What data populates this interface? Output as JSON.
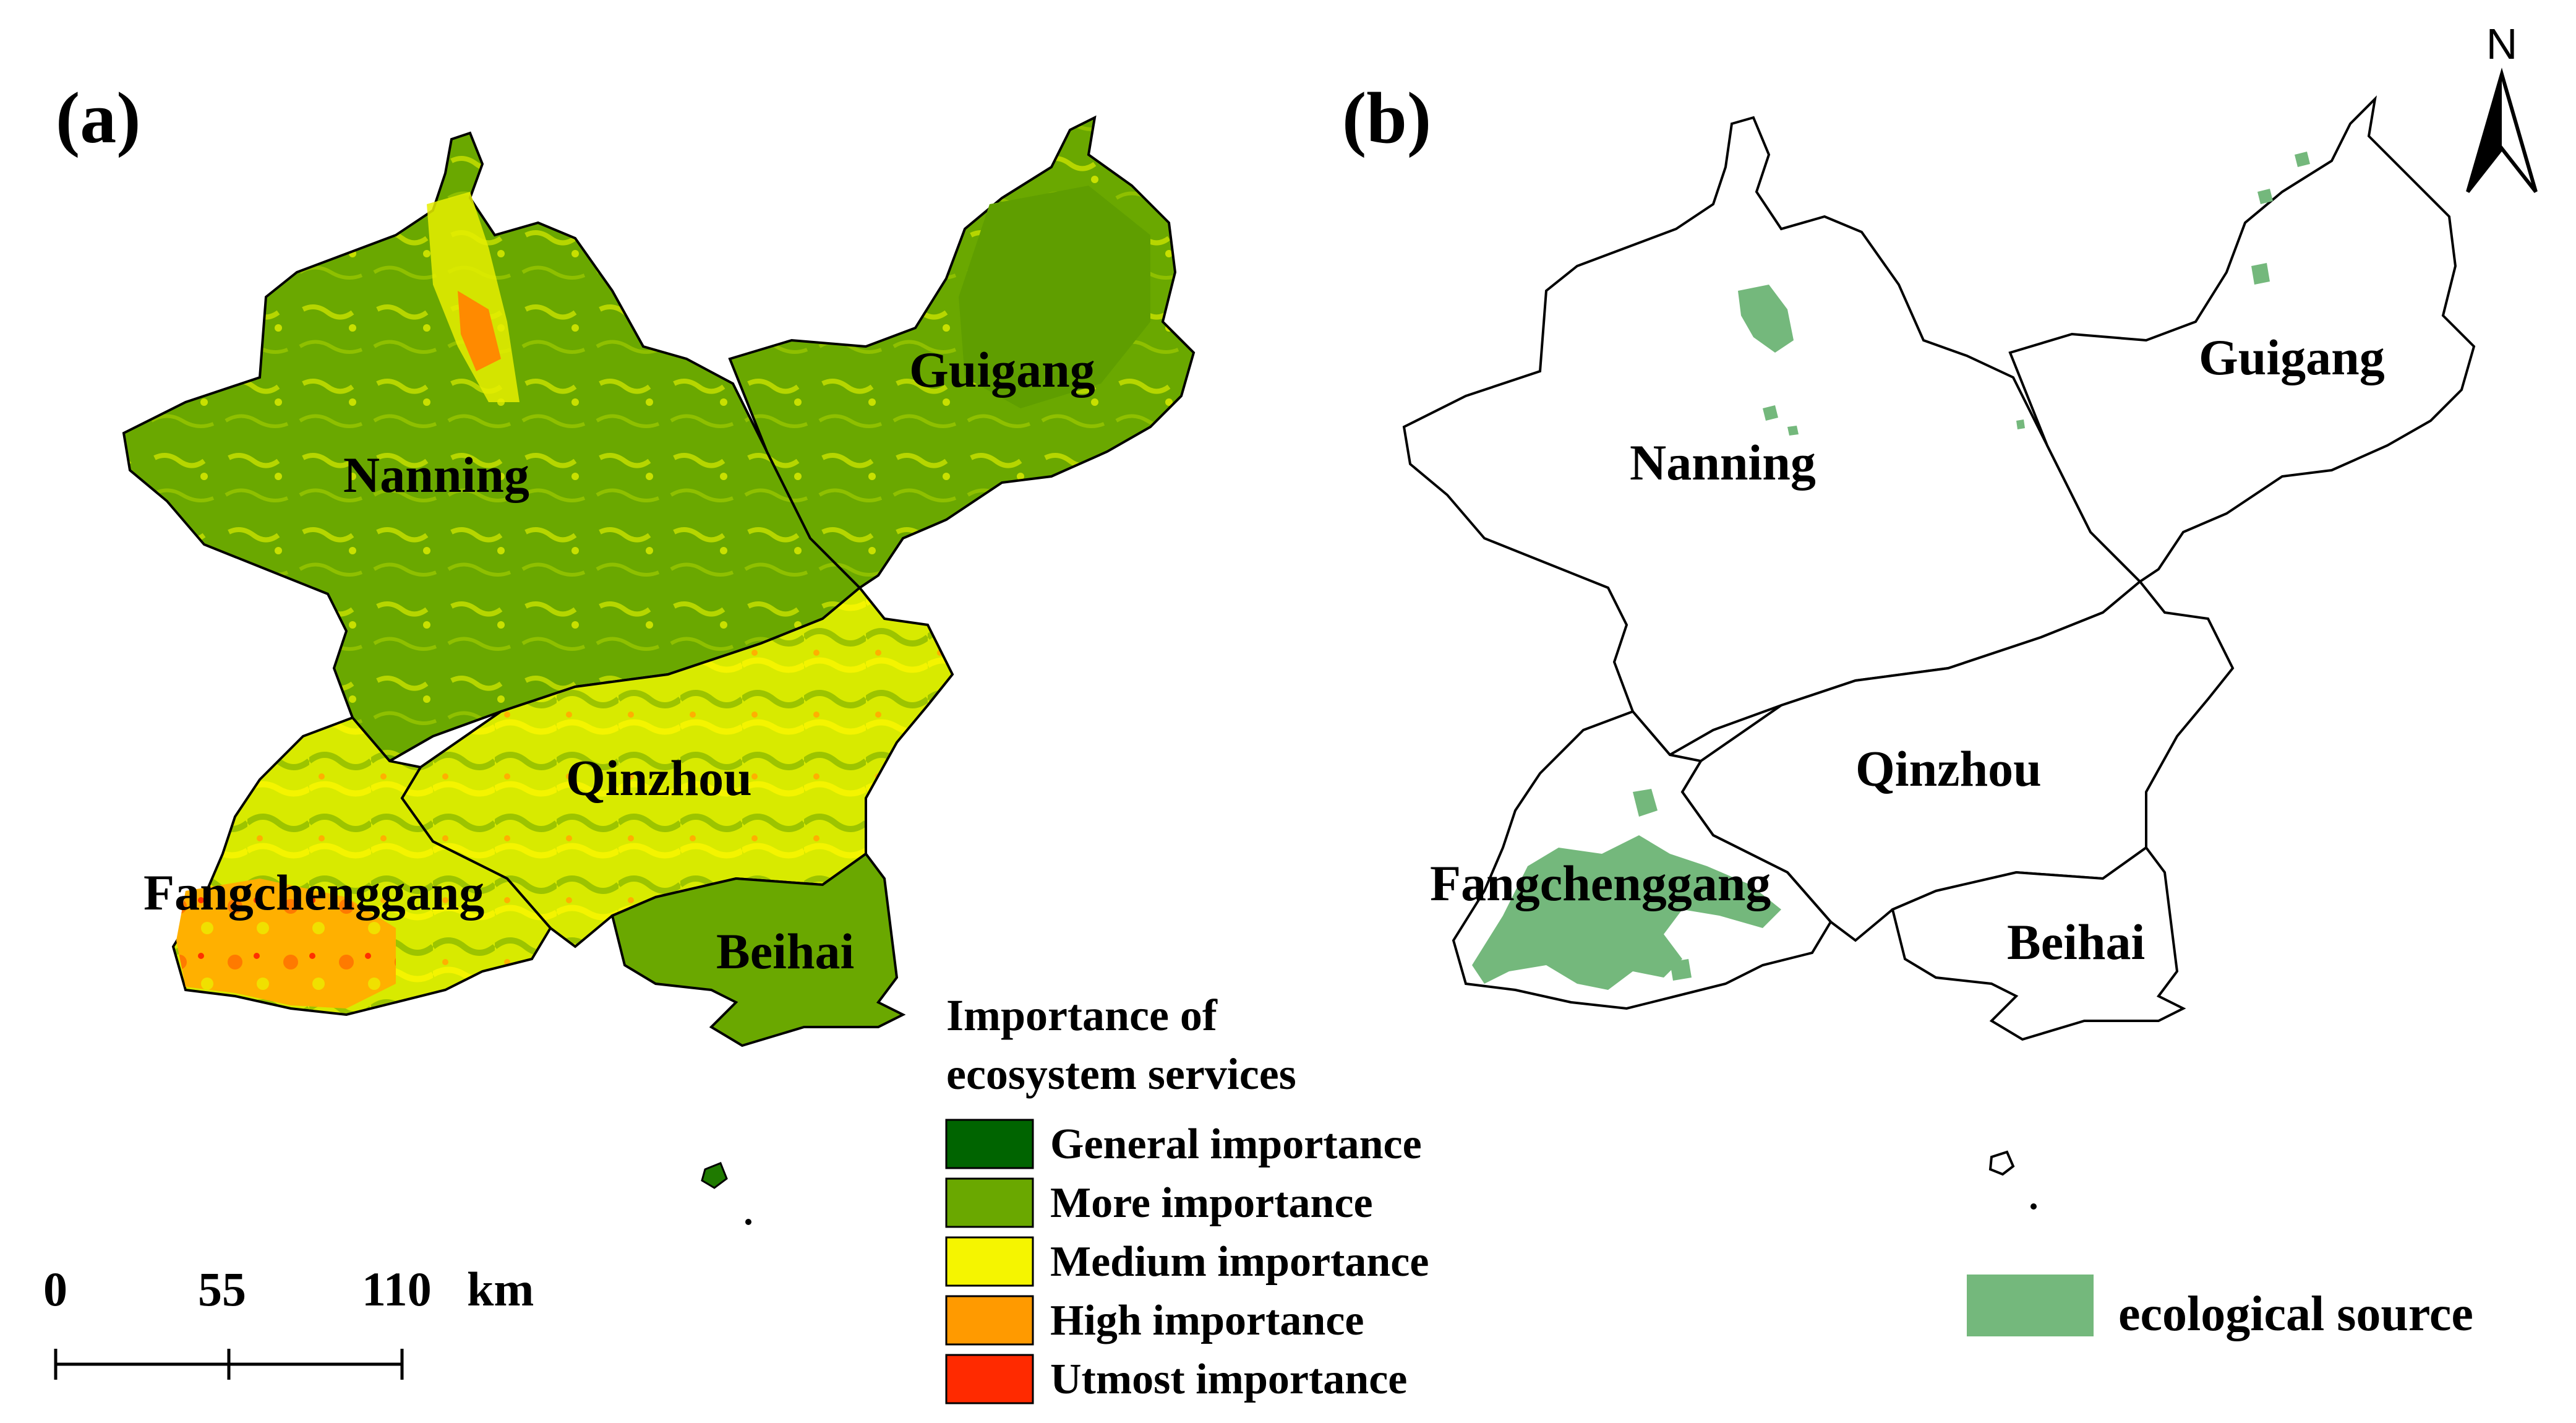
{
  "panels": {
    "a": {
      "label": "(a)",
      "cities": {
        "nanning": "Nanning",
        "guigang": "Guigang",
        "qinzhou": "Qinzhou",
        "fangchenggang": "Fangchenggang",
        "beihai": "Beihai"
      },
      "legend": {
        "title_line1": "Importance of",
        "title_line2": "ecosystem services",
        "items": [
          {
            "label": "General importance",
            "color": "#006400"
          },
          {
            "label": "More importance",
            "color": "#6aa800"
          },
          {
            "label": "Medium importance",
            "color": "#f5f500"
          },
          {
            "label": "High importance",
            "color": "#ff9a00"
          },
          {
            "label": "Utmost importance",
            "color": "#ff2a00"
          }
        ]
      },
      "scale_bar": {
        "ticks": [
          "0",
          "55",
          "110"
        ],
        "unit": "km"
      }
    },
    "b": {
      "label": "(b)",
      "cities": {
        "nanning": "Nanning",
        "guigang": "Guigang",
        "qinzhou": "Qinzhou",
        "fangchenggang": "Fangchenggang",
        "beihai": "Beihai"
      },
      "legend": {
        "label": "ecological source",
        "color": "#74b87c"
      }
    }
  },
  "north_arrow": {
    "label": "N"
  },
  "colors": {
    "boundary": "#000000",
    "region_fill_b": "#ffffff",
    "more_importance": "#6aa800",
    "medium_importance": "#e8f000",
    "high_importance": "#ff9a00",
    "utmost_importance": "#ff2a00",
    "general_importance": "#006400",
    "ecological_source": "#74b87c"
  }
}
